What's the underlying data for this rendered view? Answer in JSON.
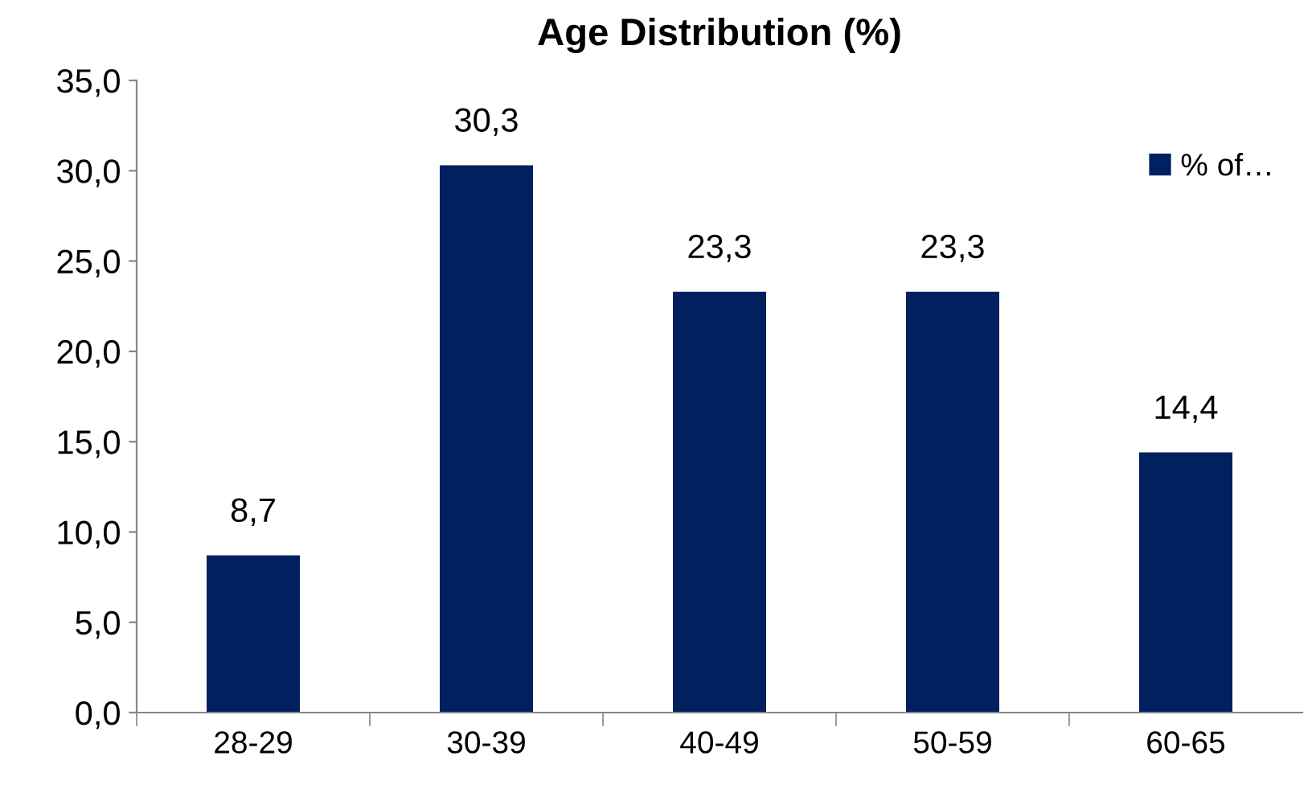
{
  "chart_data": {
    "type": "bar",
    "title": "Age Distribution (%)",
    "categories": [
      "28-29",
      "30-39",
      "40-49",
      "50-59",
      "60-65"
    ],
    "series": [
      {
        "name": "% of…",
        "color": "#002060",
        "values": [
          8.7,
          30.3,
          23.3,
          23.3,
          14.4
        ],
        "value_labels": [
          "8,7",
          "30,3",
          "23,3",
          "23,3",
          "14,4"
        ]
      }
    ],
    "ylim": [
      0,
      35
    ],
    "yticks": [
      {
        "value": 0,
        "label": "0,0"
      },
      {
        "value": 5,
        "label": "5,0"
      },
      {
        "value": 10,
        "label": "10,0"
      },
      {
        "value": 15,
        "label": "15,0"
      },
      {
        "value": 20,
        "label": "20,0"
      },
      {
        "value": 25,
        "label": "25,0"
      },
      {
        "value": 30,
        "label": "30,0"
      },
      {
        "value": 35,
        "label": "35,0"
      }
    ],
    "grid": false,
    "legend": "top right"
  }
}
